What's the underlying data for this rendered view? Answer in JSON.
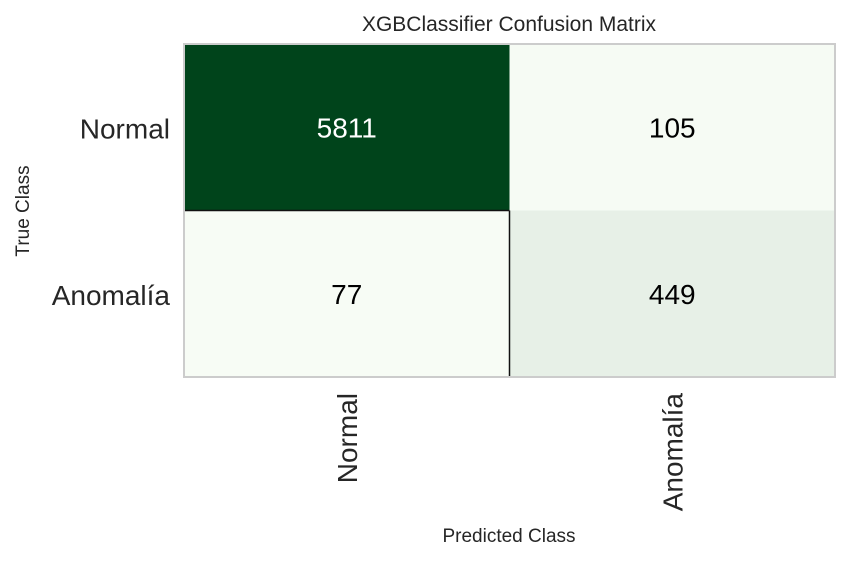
{
  "chart_data": {
    "type": "heatmap",
    "title": "XGBClassifier Confusion Matrix",
    "xlabel": "Predicted Class",
    "ylabel": "True Class",
    "x_categories": [
      "Normal",
      "Anomalía"
    ],
    "y_categories": [
      "Normal",
      "Anomalía"
    ],
    "values": [
      [
        5811,
        105
      ],
      [
        77,
        449
      ]
    ],
    "colormap": {
      "low": "#f7fcf5",
      "high": "#00441b"
    },
    "grid": false
  }
}
